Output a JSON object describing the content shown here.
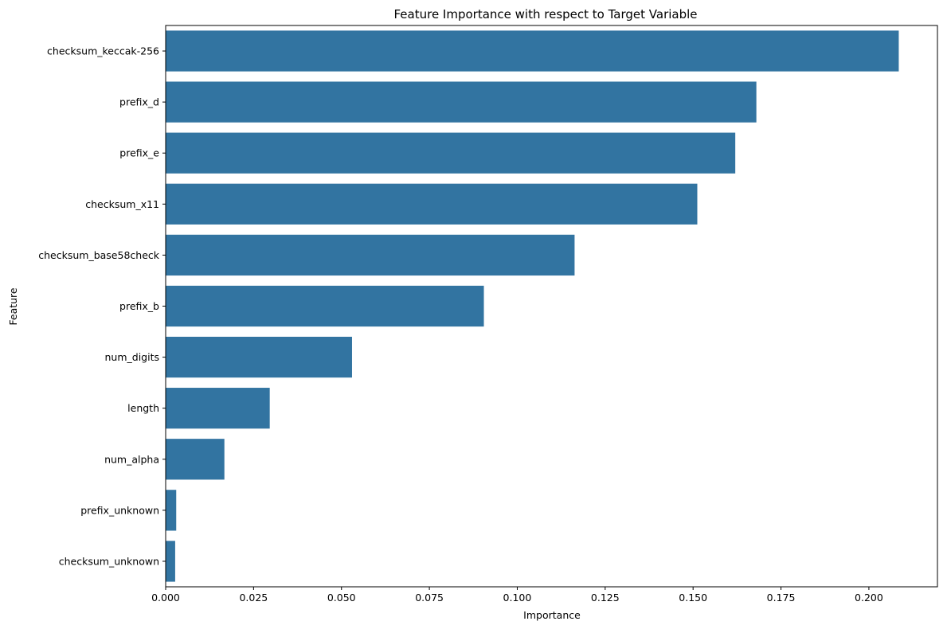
{
  "chart_data": {
    "type": "bar",
    "orientation": "horizontal",
    "title": "Feature Importance with respect to Target Variable",
    "xlabel": "Importance",
    "ylabel": "Feature",
    "categories": [
      "checksum_keccak-256",
      "prefix_d",
      "prefix_e",
      "checksum_x11",
      "checksum_base58check",
      "prefix_b",
      "num_digits",
      "length",
      "num_alpha",
      "prefix_unknown",
      "checksum_unknown"
    ],
    "values": [
      0.2085,
      0.168,
      0.162,
      0.1512,
      0.1163,
      0.0905,
      0.053,
      0.0296,
      0.0167,
      0.003,
      0.0027
    ],
    "xlim": [
      0,
      0.2195
    ],
    "xticks": [
      "0.000",
      "0.025",
      "0.050",
      "0.075",
      "0.100",
      "0.125",
      "0.150",
      "0.175",
      "0.200"
    ],
    "bar_color": "#3274a1",
    "grid": false,
    "legend": "none"
  }
}
